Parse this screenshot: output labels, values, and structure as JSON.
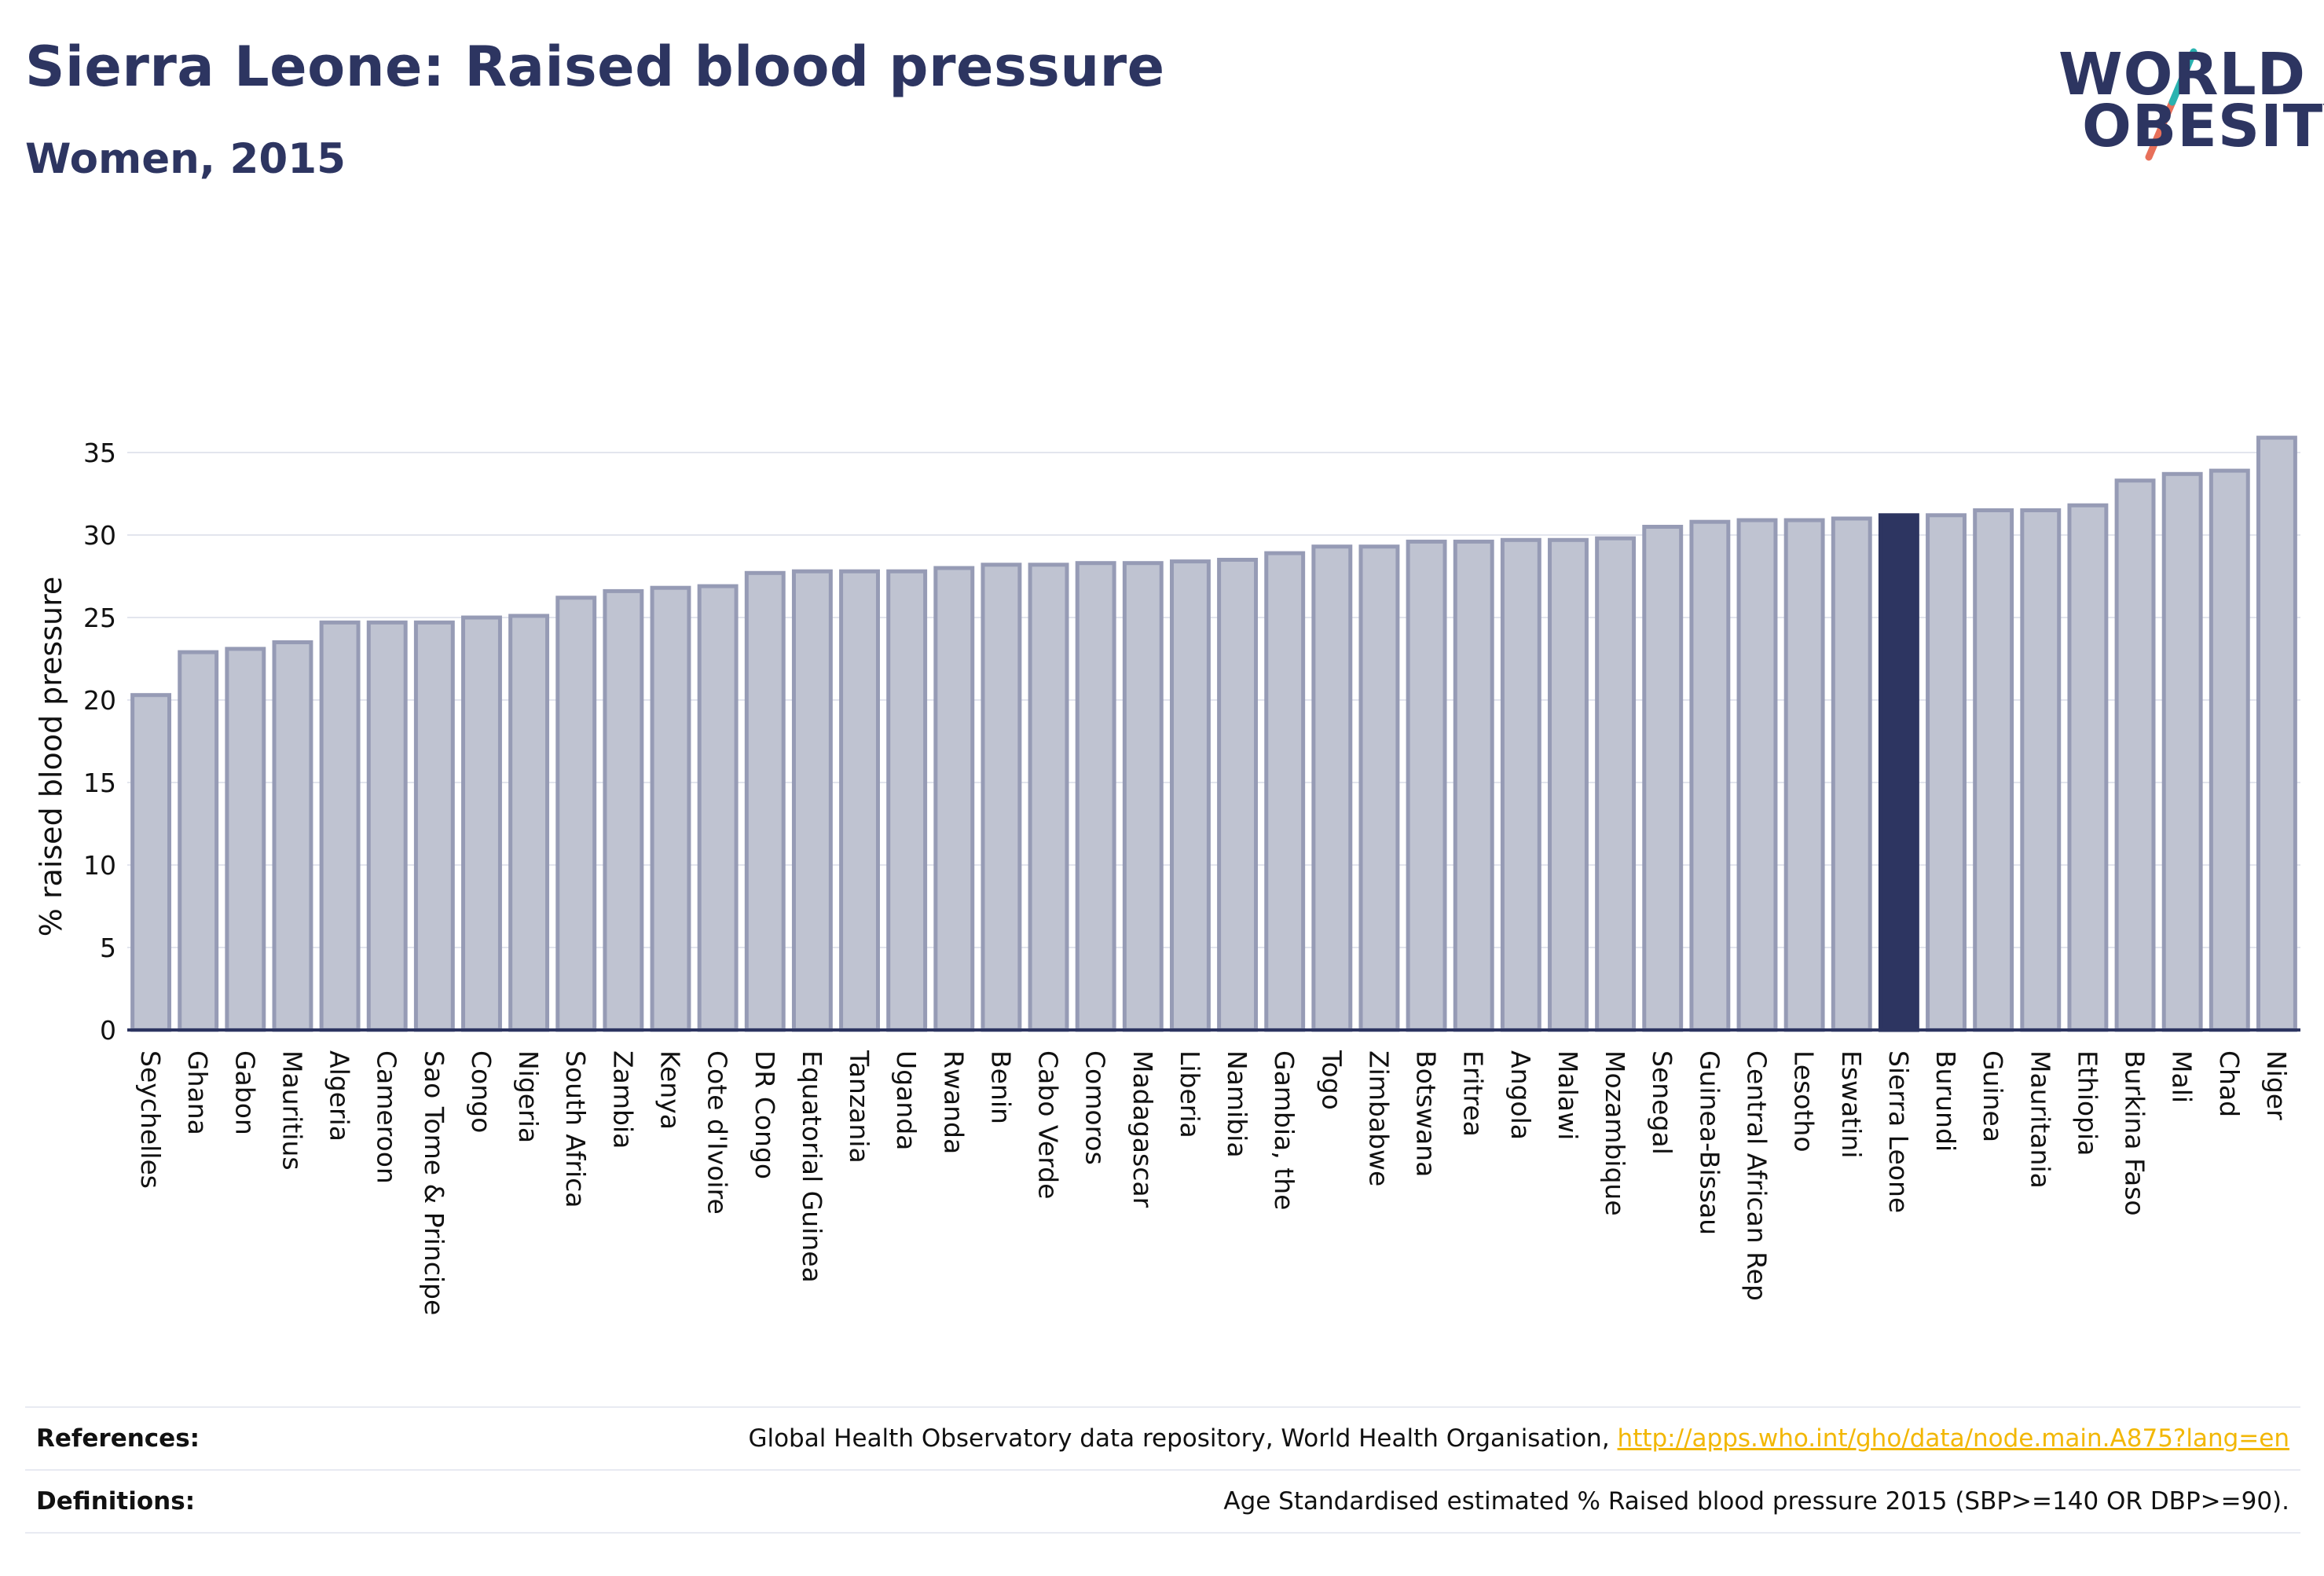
{
  "header": {
    "title": "Sierra Leone: Raised blood pressure",
    "subtitle": "Women, 2015"
  },
  "logo": {
    "line1": "WORLD",
    "line2": "OBESITY",
    "colors": {
      "text": "#2d3561",
      "slash_top": "#2ab3b0",
      "slash_bottom": "#e8705a"
    }
  },
  "chart_data": {
    "type": "bar",
    "ylabel": "% raised blood pressure",
    "xlabel": "",
    "ylim": [
      0,
      36
    ],
    "yticks": [
      0,
      5,
      10,
      15,
      20,
      25,
      30,
      35
    ],
    "grid": true,
    "legend": "none",
    "highlight": "Sierra Leone",
    "colors": {
      "bar": "#bfc3d1",
      "bar_edge": "#969bb5",
      "highlight": "#2d3561",
      "axis": "#2d3561",
      "grid": "#e3e5ee"
    },
    "categories": [
      "Seychelles",
      "Ghana",
      "Gabon",
      "Mauritius",
      "Algeria",
      "Cameroon",
      "Sao Tome & Principe",
      "Congo",
      "Nigeria",
      "South Africa",
      "Zambia",
      "Kenya",
      "Cote d'Ivoire",
      "DR Congo",
      "Equatorial Guinea",
      "Tanzania",
      "Uganda",
      "Rwanda",
      "Benin",
      "Cabo Verde",
      "Comoros",
      "Madagascar",
      "Liberia",
      "Namibia",
      "Gambia, the",
      "Togo",
      "Zimbabwe",
      "Botswana",
      "Eritrea",
      "Angola",
      "Malawi",
      "Mozambique",
      "Senegal",
      "Guinea-Bissau",
      "Central African Rep",
      "Lesotho",
      "Eswatini",
      "Sierra Leone",
      "Burundi",
      "Guinea",
      "Mauritania",
      "Ethiopia",
      "Burkina Faso",
      "Mali",
      "Chad",
      "Niger"
    ],
    "values": [
      20.3,
      22.9,
      23.1,
      23.5,
      24.7,
      24.7,
      24.7,
      25.0,
      25.1,
      26.2,
      26.6,
      26.8,
      26.9,
      27.7,
      27.8,
      27.8,
      27.8,
      28.0,
      28.2,
      28.2,
      28.3,
      28.3,
      28.4,
      28.5,
      28.9,
      29.3,
      29.3,
      29.6,
      29.6,
      29.7,
      29.7,
      29.8,
      30.5,
      30.8,
      30.9,
      30.9,
      31.0,
      31.2,
      31.2,
      31.5,
      31.5,
      31.8,
      33.3,
      33.7,
      33.9,
      35.9
    ]
  },
  "footer": {
    "references_label": "References:",
    "references_text": "Global Health Observatory data repository, World Health Organisation, ",
    "references_link": "http://apps.who.int/gho/data/node.main.A875?lang=en",
    "definitions_label": "Definitions:",
    "definitions_text": "Age Standardised estimated % Raised blood pressure 2015 (SBP>=140 OR DBP>=90)."
  }
}
